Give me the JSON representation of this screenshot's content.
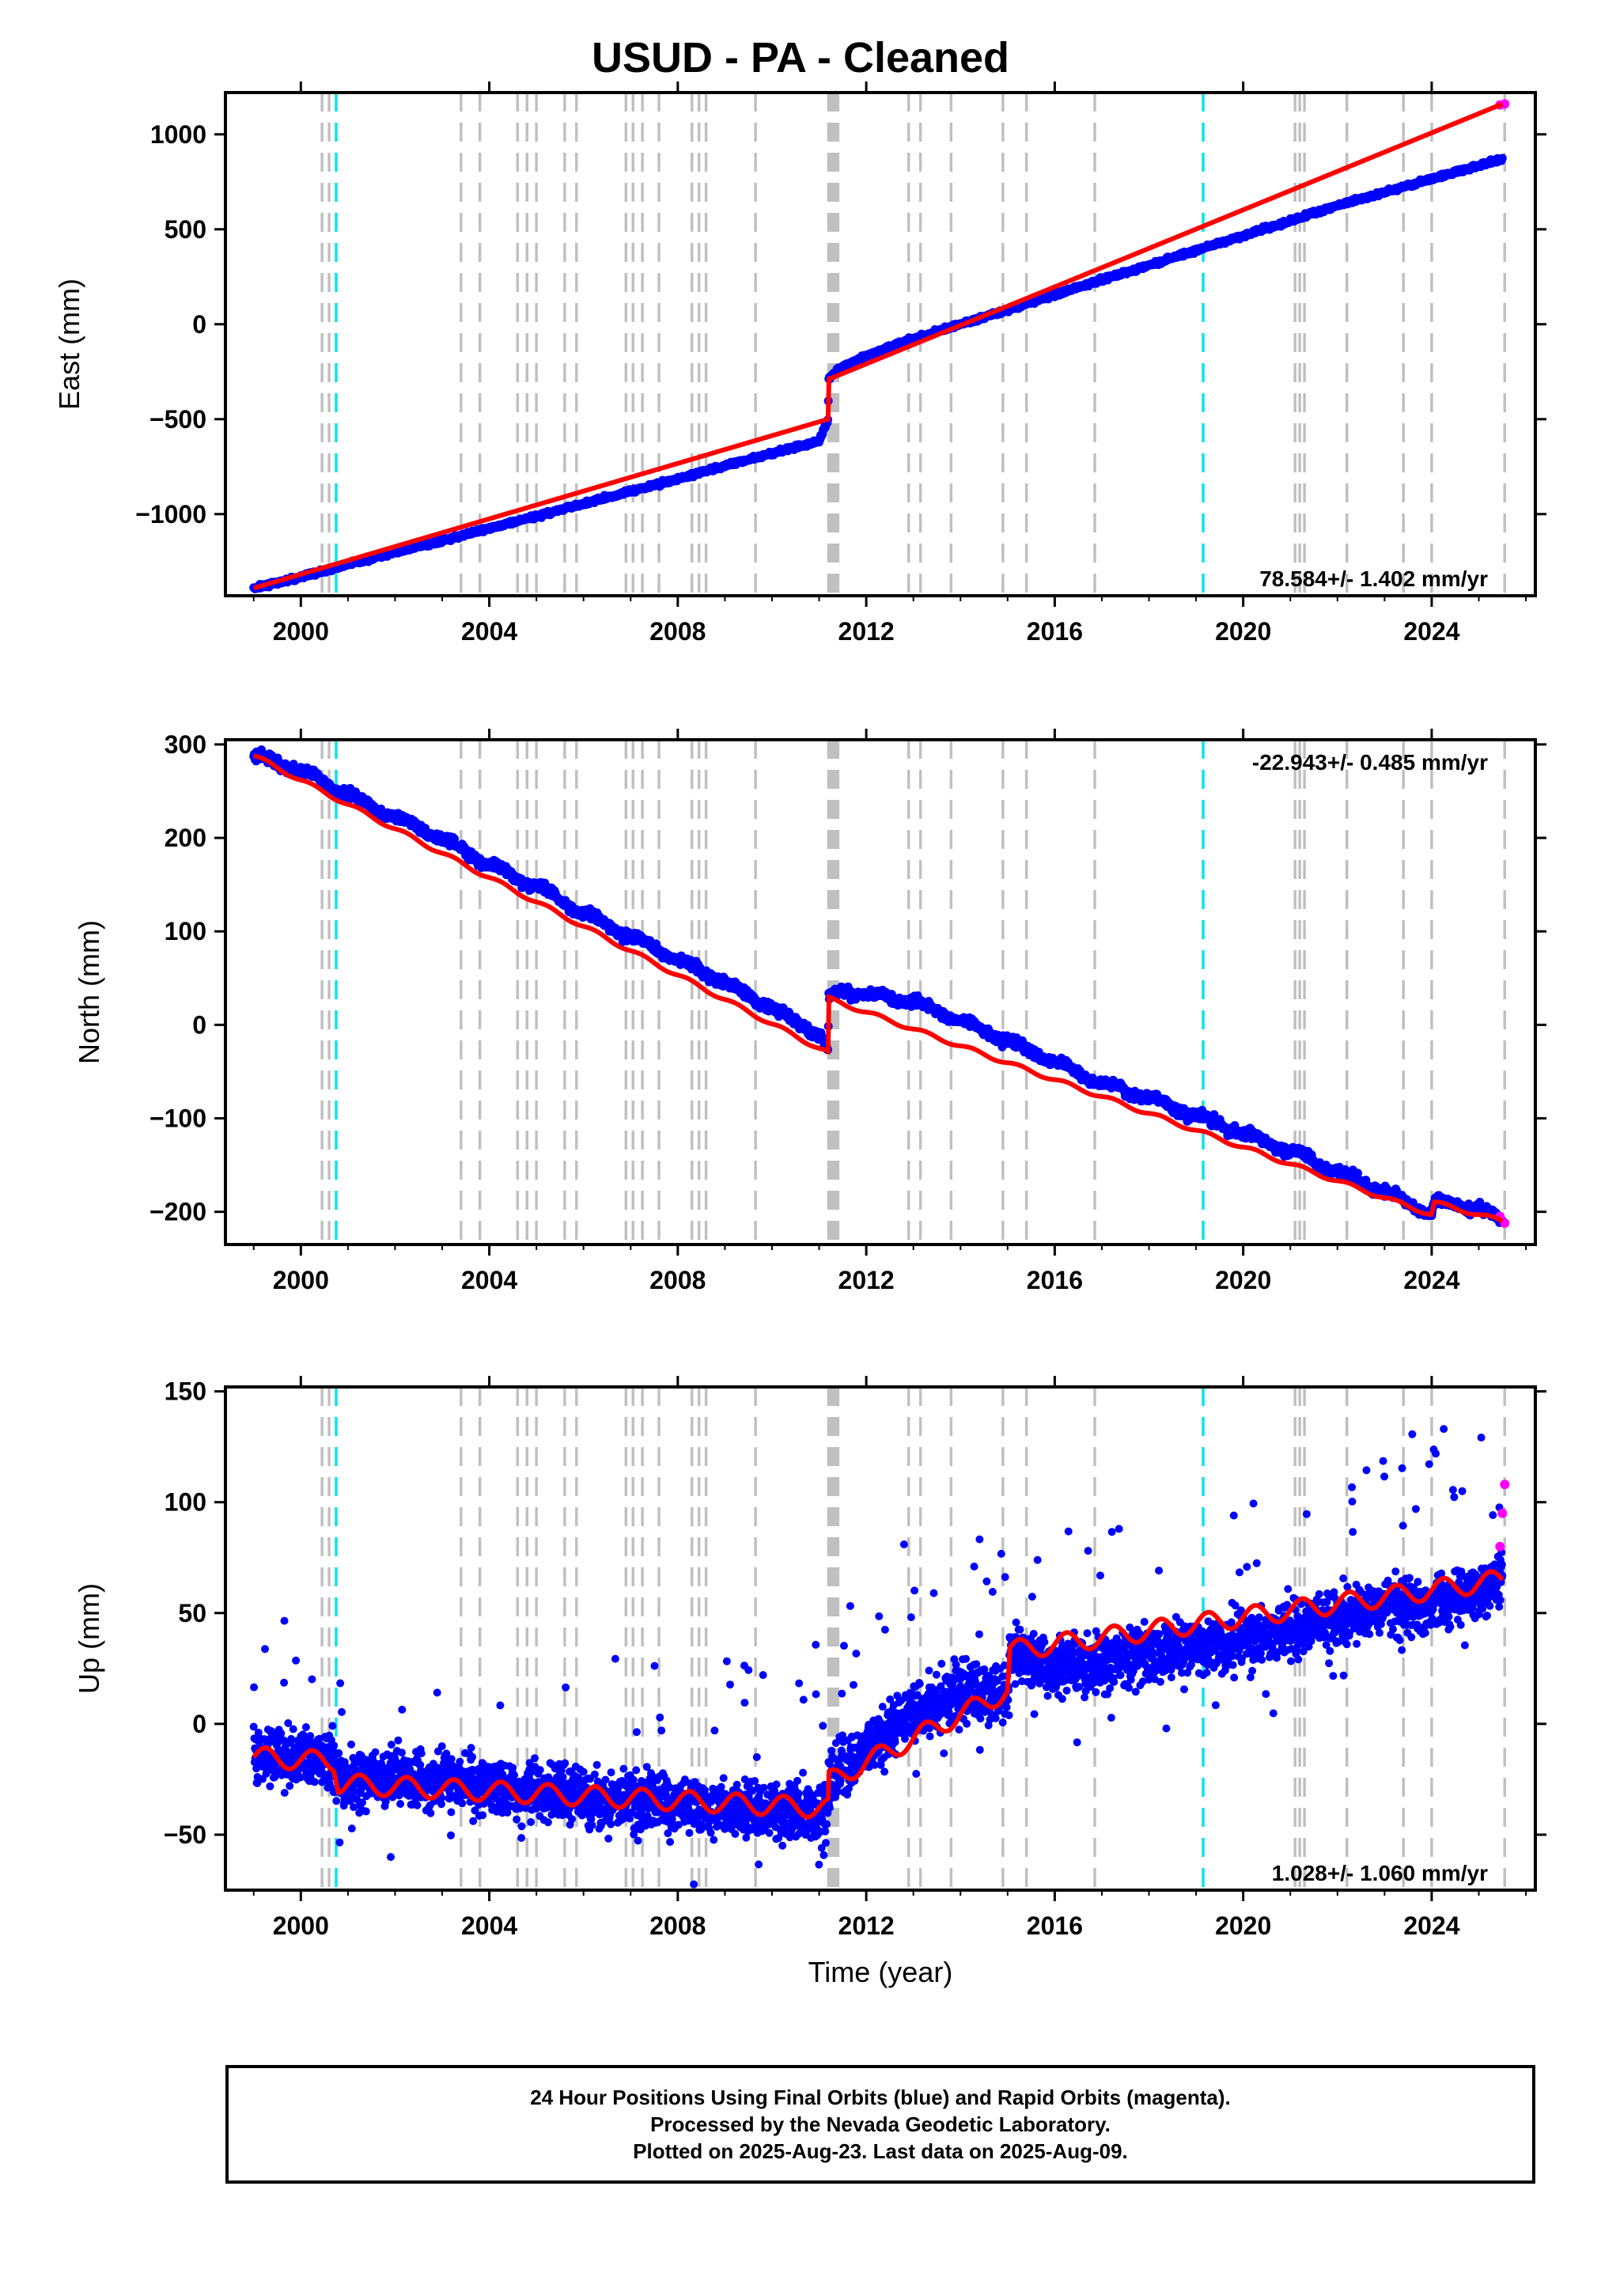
{
  "title": "USUD  - PA - Cleaned",
  "xlabel": "Time (year)",
  "caption": [
    "24 Hour Positions Using Final Orbits (blue) and Rapid Orbits (magenta).",
    "Processed by the Nevada Geodetic Laboratory.",
    "Plotted on 2025-Aug-23. Last data on 2025-Aug-09."
  ],
  "colors": {
    "final_orbit_points": "#0000ff",
    "rapid_orbit_points": "#ff00ff",
    "model_fit": "#ff0000",
    "equipment_change_lines": "#c0c0c0",
    "special_event_lines": "#00e5ee"
  },
  "event_lines": {
    "gray": [
      2000.45,
      2000.6,
      2003.4,
      2003.8,
      2004.6,
      2004.8,
      2005.0,
      2005.6,
      2005.85,
      2006.9,
      2007.05,
      2007.25,
      2007.6,
      2008.3,
      2008.45,
      2008.6,
      2009.65,
      2011.2,
      2011.25,
      2011.3,
      2011.35,
      2011.4,
      2012.9,
      2013.15,
      2013.8,
      2014.9,
      2015.4,
      2016.85,
      2021.1,
      2021.2,
      2021.3,
      2022.2,
      2023.4,
      2024.0,
      2025.55
    ],
    "cyan": [
      2000.75,
      2019.15
    ]
  },
  "chart_data": [
    {
      "type": "scatter",
      "ylabel": "East (mm)",
      "xlim": [
        1998.4,
        2026.2
      ],
      "ylim": [
        -1430,
        1220
      ],
      "xticks": [
        "2000",
        "2004",
        "2008",
        "2012",
        "2016",
        "2020",
        "2024"
      ],
      "yticks": [
        "1000",
        "500",
        "0",
        "−500",
        "−1000"
      ],
      "ytick_values": [
        1000,
        500,
        0,
        -500,
        -1000
      ],
      "rate_label": "78.584+/- 1.402 mm/yr",
      "rate_label_position": "bottom-right",
      "grid": false,
      "legend": "none",
      "series": [
        {
          "name": "Final Orbits",
          "x": [
            1999.0,
            2000.0,
            2001.0,
            2002.0,
            2003.0,
            2004.0,
            2005.0,
            2006.0,
            2007.0,
            2008.0,
            2009.0,
            2010.0,
            2011.0,
            2011.19,
            2011.2,
            2011.4,
            2011.7,
            2012.0,
            2013.0,
            2014.0,
            2015.0,
            2016.0,
            2017.0,
            2018.0,
            2019.0,
            2020.0,
            2021.0,
            2022.0,
            2023.0,
            2024.0,
            2025.0,
            2025.5
          ],
          "y": [
            -1390,
            -1330,
            -1265,
            -1200,
            -1140,
            -1075,
            -1010,
            -945,
            -880,
            -815,
            -745,
            -680,
            -615,
            -500,
            -290,
            -240,
            -200,
            -165,
            -75,
            0,
            75,
            155,
            235,
            310,
            390,
            465,
            545,
            625,
            695,
            765,
            835,
            870
          ]
        },
        {
          "name": "Rapid Orbits",
          "x": [
            2025.45,
            2025.55
          ],
          "y": [
            1155,
            1160
          ]
        }
      ],
      "model_fit": {
        "x": [
          1999.0,
          2011.19,
          2011.2,
          2025.5
        ],
        "y": [
          -1390,
          -500,
          -290,
          1160
        ]
      }
    },
    {
      "type": "scatter",
      "ylabel": "North (mm)",
      "xlim": [
        1998.4,
        2026.2
      ],
      "ylim": [
        -235,
        305
      ],
      "xticks": [
        "2000",
        "2004",
        "2008",
        "2012",
        "2016",
        "2020",
        "2024"
      ],
      "yticks": [
        "300",
        "200",
        "100",
        "0",
        "−100",
        "−200"
      ],
      "ytick_values": [
        300,
        200,
        100,
        0,
        -100,
        -200
      ],
      "rate_label": "-22.943+/- 0.485 mm/yr",
      "rate_label_position": "top-right",
      "grid": false,
      "legend": "none",
      "series": [
        {
          "name": "Final Orbits",
          "x": [
            1999.0,
            2000.0,
            2001.0,
            2002.0,
            2003.0,
            2004.0,
            2005.0,
            2006.0,
            2007.0,
            2008.0,
            2009.0,
            2010.0,
            2011.0,
            2011.19,
            2011.2,
            2011.5,
            2012.0,
            2013.0,
            2014.0,
            2015.0,
            2016.0,
            2017.0,
            2018.0,
            2019.0,
            2020.0,
            2021.0,
            2022.0,
            2023.0,
            2024.0,
            2024.05,
            2025.0,
            2025.5
          ],
          "y": [
            288,
            272,
            246,
            222,
            199,
            172,
            148,
            120,
            94,
            70,
            45,
            18,
            -10,
            -30,
            28,
            37,
            32,
            25,
            5,
            -17,
            -40,
            -62,
            -78,
            -97,
            -116,
            -135,
            -157,
            -179,
            -203,
            -190,
            -196,
            -210
          ]
        },
        {
          "name": "Rapid Orbits",
          "x": [
            2025.45,
            2025.55
          ],
          "y": [
            -205,
            -212
          ]
        }
      ],
      "model_fit": {
        "x": [
          1999.0,
          2011.19,
          2011.2,
          2024.0,
          2024.05,
          2025.5
        ],
        "y": [
          288,
          -30,
          28,
          -203,
          -190,
          -210
        ]
      }
    },
    {
      "type": "scatter",
      "ylabel": "Up (mm)",
      "xlim": [
        1998.4,
        2026.2
      ],
      "ylim": [
        -75,
        152
      ],
      "xticks": [
        "2000",
        "2004",
        "2008",
        "2012",
        "2016",
        "2020",
        "2024"
      ],
      "yticks": [
        "150",
        "100",
        "50",
        "0",
        "−50"
      ],
      "ytick_values": [
        150,
        100,
        50,
        0,
        -50
      ],
      "rate_label": "1.028+/- 1.060 mm/yr",
      "rate_label_position": "bottom-right",
      "grid": false,
      "legend": "none",
      "series": [
        {
          "name": "Final Orbits",
          "x": [
            1999.0,
            2000.0,
            2000.7,
            2000.8,
            2002.0,
            2004.0,
            2006.0,
            2008.0,
            2010.0,
            2011.19,
            2011.2,
            2012.0,
            2013.0,
            2014.0,
            2015.0,
            2015.05,
            2016.0,
            2017.0,
            2018.0,
            2019.0,
            2020.0,
            2021.0,
            2022.0,
            2023.0,
            2024.0,
            2025.0,
            2025.5
          ],
          "y": [
            -15,
            -15,
            -17,
            -27,
            -24,
            -29,
            -33,
            -36,
            -40,
            -38,
            -26,
            -10,
            5,
            15,
            15,
            33,
            25,
            28,
            32,
            35,
            38,
            42,
            48,
            52,
            55,
            60,
            65
          ]
        },
        {
          "name": "Rapid Orbits",
          "x": [
            2025.45,
            2025.5,
            2025.55
          ],
          "y": [
            80,
            95,
            108
          ]
        }
      ],
      "model_fit": {
        "x": [
          1999.0,
          2000.7,
          2000.8,
          2011.19,
          2011.2,
          2015.0,
          2015.05,
          2025.5
        ],
        "y": [
          -15,
          -17,
          -27,
          -38,
          -26,
          15,
          33,
          65
        ]
      }
    }
  ]
}
